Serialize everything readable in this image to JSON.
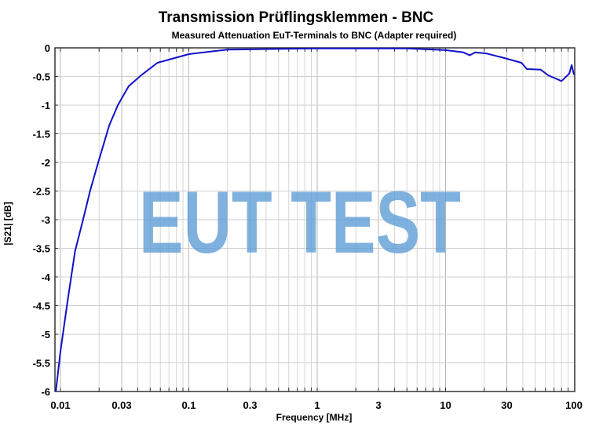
{
  "chart_data": {
    "type": "line",
    "title": "Transmission Prüflingsklemmen - BNC",
    "subtitle": "Measured Attenuation EuT-Terminals to BNC (Adapter required)",
    "xlabel": "Frequency [MHz]",
    "ylabel": "|S21| [dB]",
    "xscale": "log",
    "xlim": [
      0.0092,
      100
    ],
    "ylim": [
      -6,
      0
    ],
    "x_ticks": [
      "0.01",
      "0.03",
      "0.1",
      "0.3",
      "1",
      "3",
      "10",
      "30",
      "100"
    ],
    "y_ticks": [
      "0",
      "-0.5",
      "-1",
      "-1.5",
      "-2",
      "-2.5",
      "-3",
      "-3.5",
      "-4",
      "-4.5",
      "-5",
      "-5.5",
      "-6"
    ],
    "grid": true,
    "watermark": "EUT TEST",
    "series": [
      {
        "name": "|S21|",
        "color": "#1010c8",
        "x": [
          0.0092,
          0.01,
          0.0114,
          0.013,
          0.015,
          0.017,
          0.0197,
          0.024,
          0.028,
          0.034,
          0.043,
          0.057,
          0.1,
          0.2,
          1,
          5,
          10,
          13.8,
          15.4,
          17,
          21,
          27.8,
          39,
          43,
          55,
          63,
          80,
          92,
          96,
          100
        ],
        "values": [
          -6.0,
          -5.3,
          -4.4,
          -3.55,
          -3.0,
          -2.5,
          -2.0,
          -1.35,
          -1.0,
          -0.67,
          -0.47,
          -0.26,
          -0.11,
          -0.03,
          -0.01,
          -0.01,
          -0.04,
          -0.08,
          -0.13,
          -0.08,
          -0.1,
          -0.17,
          -0.26,
          -0.37,
          -0.38,
          -0.48,
          -0.58,
          -0.45,
          -0.3,
          -0.47
        ]
      }
    ]
  }
}
